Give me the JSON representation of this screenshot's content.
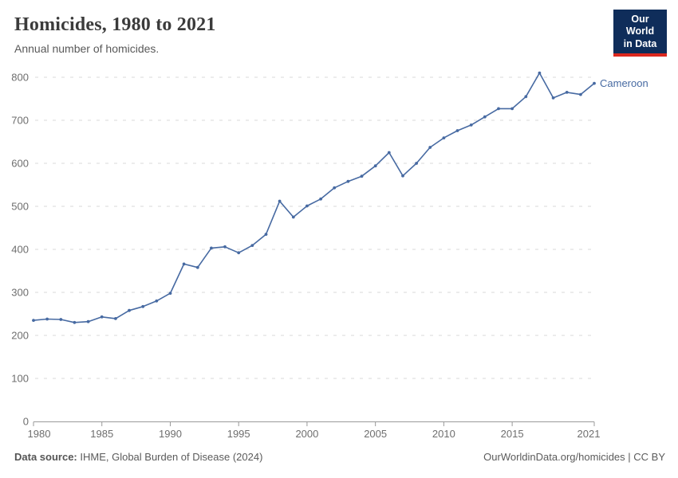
{
  "header": {
    "title": "Homicides, 1980 to 2021",
    "subtitle": "Annual number of homicides.",
    "logo": {
      "line1": "Our World",
      "line2": "in Data",
      "bg_color": "#0f2d5a",
      "accent_color": "#dc281e"
    }
  },
  "chart_data": {
    "type": "line",
    "title": "Homicides, 1980 to 2021",
    "subtitle": "Annual number of homicides.",
    "xlabel": "",
    "ylabel": "",
    "xlim": [
      1980,
      2021
    ],
    "ylim": [
      0,
      800
    ],
    "yticks": [
      0,
      100,
      200,
      300,
      400,
      500,
      600,
      700,
      800
    ],
    "xticks": [
      1980,
      1985,
      1990,
      1995,
      2000,
      2005,
      2010,
      2015,
      2021
    ],
    "grid": "horizontal-dashed",
    "legend_position": "end-of-line-label",
    "series": [
      {
        "name": "Cameroon",
        "color": "#476aa2",
        "x": [
          1980,
          1981,
          1982,
          1983,
          1984,
          1985,
          1986,
          1987,
          1988,
          1989,
          1990,
          1991,
          1992,
          1993,
          1994,
          1995,
          1996,
          1997,
          1998,
          1999,
          2000,
          2001,
          2002,
          2003,
          2004,
          2005,
          2006,
          2007,
          2008,
          2009,
          2010,
          2011,
          2012,
          2013,
          2014,
          2015,
          2016,
          2017,
          2018,
          2019,
          2020,
          2021
        ],
        "values": [
          235,
          238,
          237,
          230,
          232,
          243,
          239,
          258,
          267,
          280,
          298,
          366,
          358,
          403,
          406,
          392,
          409,
          435,
          512,
          475,
          501,
          517,
          543,
          558,
          570,
          594,
          625,
          571,
          600,
          637,
          659,
          676,
          689,
          708,
          727,
          727,
          755,
          810,
          752,
          765,
          760,
          786
        ]
      }
    ]
  },
  "footer": {
    "source_label": "Data source:",
    "source_text": " IHME, Global Burden of Disease (2024)",
    "credit": "OurWorldinData.org/homicides | CC BY"
  },
  "colors": {
    "title": "#3b3b3b",
    "subtitle": "#595959",
    "tick_label": "#6e6e6e",
    "gridline": "#dadada",
    "axis": "#999999",
    "line": "#476aa2"
  }
}
